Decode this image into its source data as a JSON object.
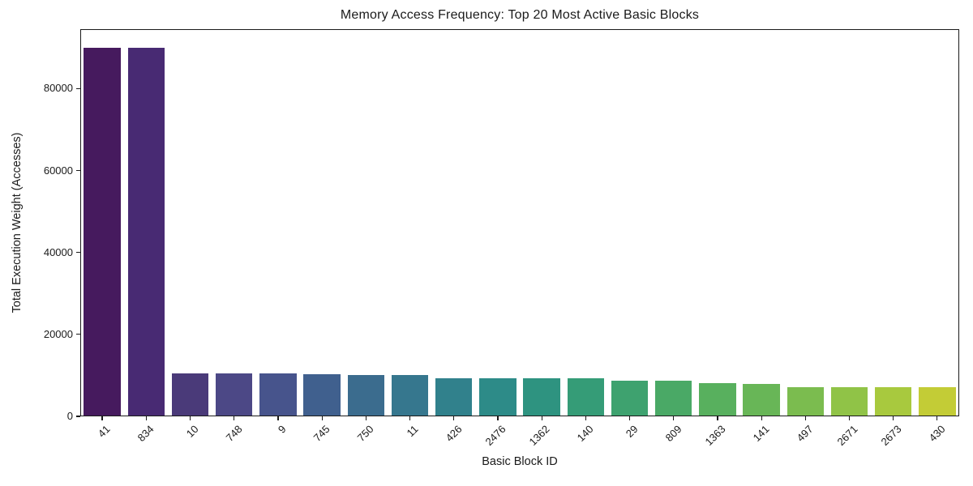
{
  "chart_data": {
    "type": "bar",
    "title": "Memory Access Frequency: Top 20 Most Active Basic Blocks",
    "xlabel": "Basic Block ID",
    "ylabel": "Total Execution Weight (Accesses)",
    "categories": [
      "41",
      "834",
      "10",
      "748",
      "9",
      "745",
      "750",
      "11",
      "426",
      "2476",
      "1362",
      "140",
      "29",
      "809",
      "1363",
      "141",
      "497",
      "2671",
      "2673",
      "430"
    ],
    "values": [
      90000,
      89900,
      10450,
      10420,
      10400,
      10380,
      10150,
      10120,
      9400,
      9350,
      9300,
      9250,
      8800,
      8750,
      8050,
      8000,
      7100,
      7080,
      7060,
      7040
    ],
    "bar_colors": [
      "#461a5e",
      "#482a73",
      "#4a3a79",
      "#4c4886",
      "#47548c",
      "#40608e",
      "#3b6c8e",
      "#36778e",
      "#31818c",
      "#2d8b88",
      "#2e9380",
      "#359c77",
      "#3ea26f",
      "#4aa966",
      "#58b05e",
      "#68b657",
      "#7bbc4f",
      "#90c347",
      "#a8c93e",
      "#c3cc36"
    ],
    "palette": "viridis-desaturated",
    "ylim": [
      0,
      94500
    ],
    "yticks": [
      0,
      20000,
      40000,
      60000,
      80000
    ],
    "ytick_labels": [
      "0",
      "20000",
      "40000",
      "60000",
      "80000"
    ],
    "xtick_rotation_deg": 45,
    "grid": false,
    "legend_position": "none",
    "background_color": "#ffffff",
    "text_color": "#1a1a1a"
  }
}
